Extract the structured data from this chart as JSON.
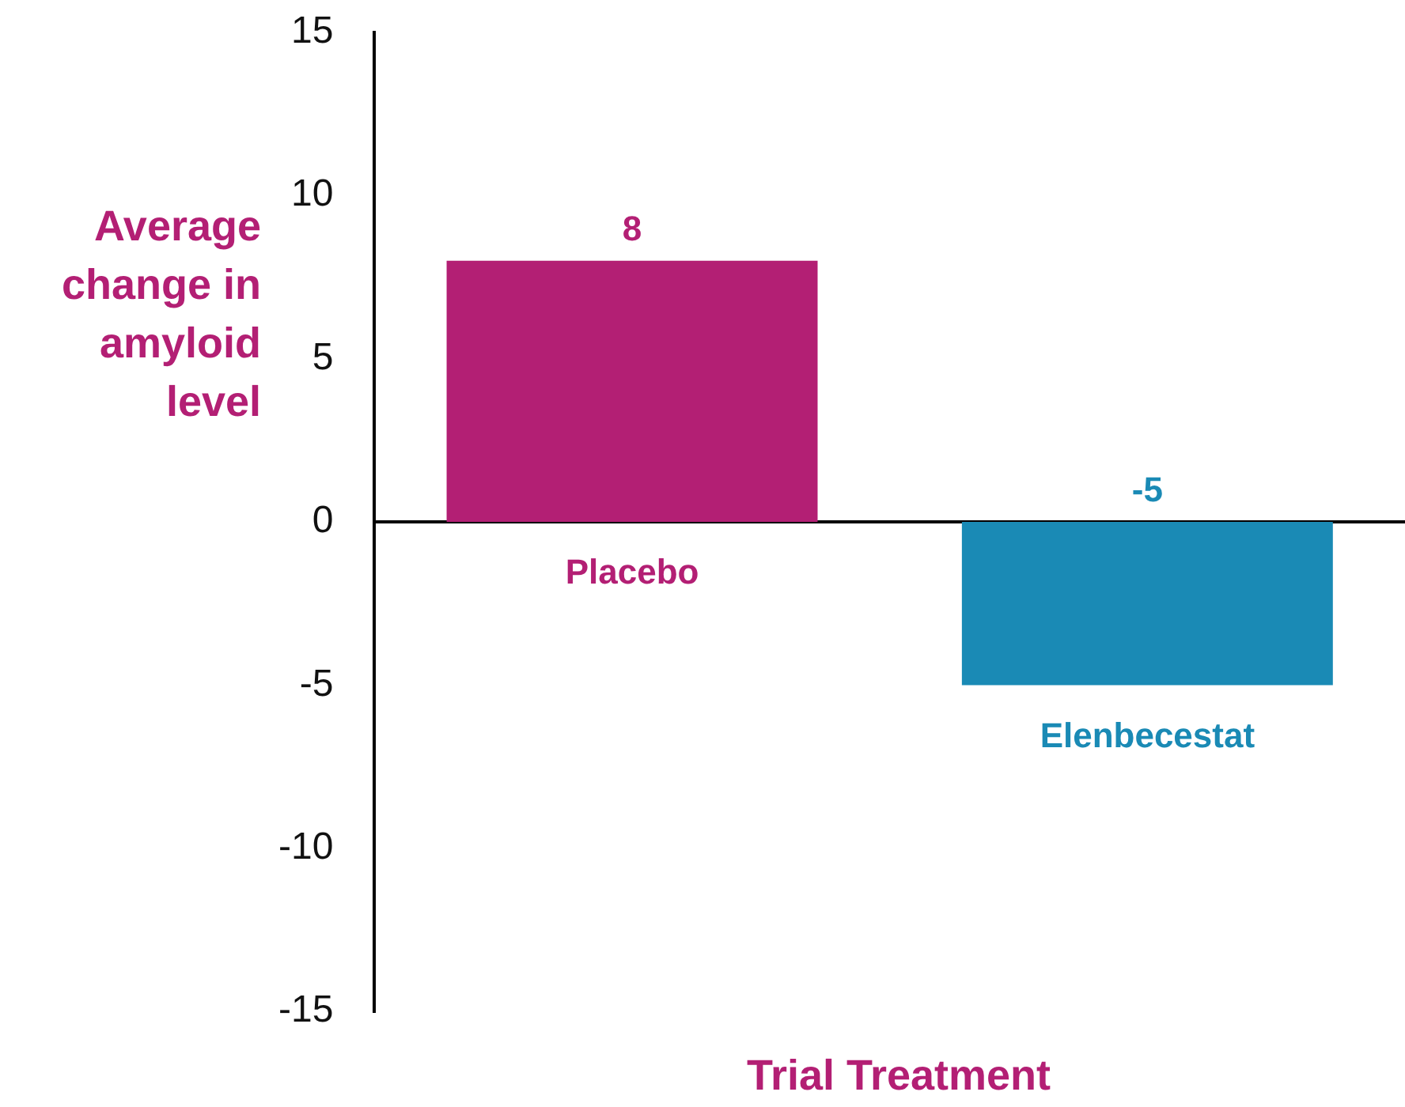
{
  "chart_data": {
    "type": "bar",
    "xlabel": "Trial Treatment",
    "ylabel": "Average change in amyloid level",
    "categories": [
      "Placebo",
      "Elenbecestat"
    ],
    "values": [
      8,
      -5
    ],
    "colors": [
      "#b31f74",
      "#1a8ab5"
    ],
    "ylim": [
      -15,
      15
    ],
    "yticks": [
      -15,
      -10,
      -5,
      0,
      5,
      10,
      15
    ],
    "data_labels": true
  }
}
